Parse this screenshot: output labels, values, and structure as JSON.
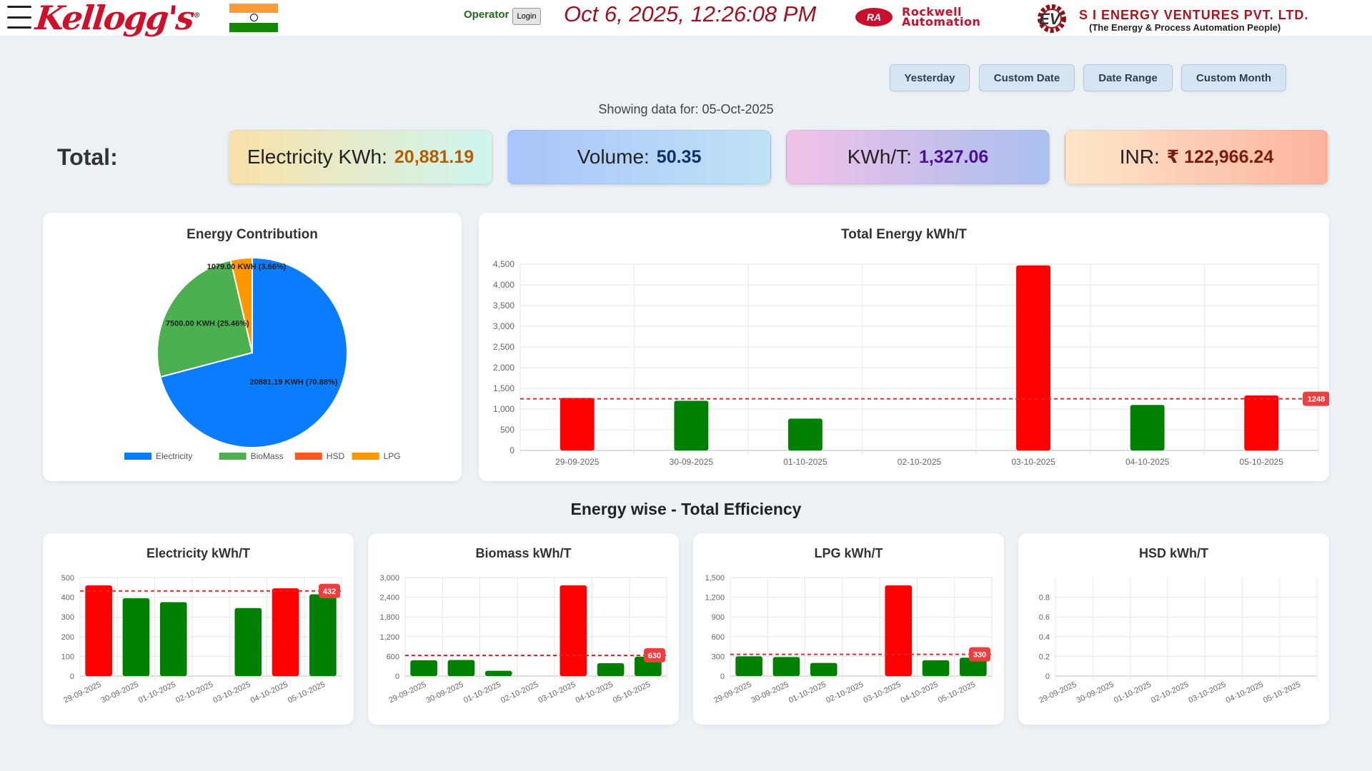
{
  "header": {
    "brand": "Kellogg's",
    "brand_mark": "®",
    "operator_label": "Operator",
    "login_label": "Login",
    "datetime": "Oct 6, 2025, 12:26:08 PM",
    "ra_badge": "RA",
    "ra_line1": "Rockwell",
    "ra_line2": "Automation",
    "ev_badge": "EV",
    "company": "S I ENERGY VENTURES PVT. LTD.",
    "company_tagline": "(The Energy & Process Automation People)"
  },
  "filters": [
    "Yesterday",
    "Custom Date",
    "Date Range",
    "Custom Month"
  ],
  "showing_text": "Showing data for: 05-Oct-2025",
  "totals": {
    "label": "Total:",
    "items": [
      {
        "label": "Electricity KWh:",
        "value": "20,881.19"
      },
      {
        "label": "Volume:",
        "value": "50.35"
      },
      {
        "label": "KWh/T:",
        "value": "1,327.06"
      },
      {
        "label": "INR:",
        "value": "₹ 122,966.24"
      }
    ]
  },
  "colors": {
    "over_target": "#ff0000",
    "under_target": "#008000",
    "target_line": "#e0282e",
    "electricity": "#0a7cff",
    "biomass": "#4caf50",
    "hsd": "#ff5722",
    "lpg": "#ff9800"
  },
  "section_title": "Energy wise - Total Efficiency",
  "charts": {
    "pie": {
      "title": "Energy Contribution",
      "chart_data": {
        "type": "pie",
        "slices": [
          {
            "name": "Electricity",
            "value": 20881.19,
            "label": "20881.19 KWH (70.88%)",
            "color": "#0a7cff"
          },
          {
            "name": "BioMass",
            "value": 7500.0,
            "label": "7500.00 KWH (25.46%)",
            "color": "#4caf50"
          },
          {
            "name": "HSD",
            "value": 0,
            "label": "",
            "color": "#ff5722"
          },
          {
            "name": "LPG",
            "value": 1079.0,
            "label": "1079.00 KWH (3.66%)",
            "color": "#ff9800"
          }
        ],
        "legend_position": "bottom"
      }
    },
    "total": {
      "title": "Total Energy kWh/T",
      "chart_data": {
        "type": "bar",
        "categories": [
          "29-09-2025",
          "30-09-2025",
          "01-10-2025",
          "02-10-2025",
          "03-10-2025",
          "04-10-2025",
          "05-10-2025"
        ],
        "values": [
          1270,
          1200,
          770,
          0,
          4470,
          1100,
          1327
        ],
        "target": 1248,
        "target_label": "1248",
        "ylim": [
          0,
          4500
        ],
        "yticks": [
          0,
          500,
          1000,
          1500,
          2000,
          2500,
          3000,
          3500,
          4000,
          4500
        ],
        "ytick_labels": [
          "0",
          "500",
          "1,000",
          "1,500",
          "2,000",
          "2,500",
          "3,000",
          "3,500",
          "4,000",
          "4,500"
        ],
        "grid": true
      }
    },
    "small": [
      {
        "title": "Electricity kWh/T",
        "chart_data": {
          "type": "bar",
          "categories": [
            "29-09-2025",
            "30-09-2025",
            "01-10-2025",
            "02-10-2025",
            "03-10-2025",
            "04-10-2025",
            "05-10-2025"
          ],
          "values": [
            460,
            395,
            375,
            0,
            345,
            445,
            415
          ],
          "target": 432,
          "target_label": "432",
          "ylim": [
            0,
            500
          ],
          "yticks": [
            0,
            100,
            200,
            300,
            400,
            500
          ],
          "ytick_labels": [
            "0",
            "100",
            "200",
            "300",
            "400",
            "500"
          ],
          "grid": true
        }
      },
      {
        "title": "Biomass kWh/T",
        "chart_data": {
          "type": "bar",
          "categories": [
            "29-09-2025",
            "30-09-2025",
            "01-10-2025",
            "02-10-2025",
            "03-10-2025",
            "04-10-2025",
            "05-10-2025"
          ],
          "values": [
            480,
            490,
            160,
            0,
            2760,
            390,
            590
          ],
          "target": 630,
          "target_label": "630",
          "ylim": [
            0,
            3000
          ],
          "yticks": [
            0,
            600,
            1200,
            1800,
            2400,
            3000
          ],
          "ytick_labels": [
            "0",
            "600",
            "1,200",
            "1,800",
            "2,400",
            "3,000"
          ],
          "grid": true
        }
      },
      {
        "title": "LPG kWh/T",
        "chart_data": {
          "type": "bar",
          "categories": [
            "29-09-2025",
            "30-09-2025",
            "01-10-2025",
            "02-10-2025",
            "03-10-2025",
            "04-10-2025",
            "05-10-2025"
          ],
          "values": [
            300,
            290,
            200,
            0,
            1380,
            240,
            280
          ],
          "target": 330,
          "target_label": "330",
          "ylim": [
            0,
            1500
          ],
          "yticks": [
            0,
            300,
            600,
            900,
            1200,
            1500
          ],
          "ytick_labels": [
            "0",
            "300",
            "600",
            "900",
            "1,200",
            "1,500"
          ],
          "grid": true
        }
      },
      {
        "title": "HSD kWh/T",
        "chart_data": {
          "type": "bar",
          "categories": [
            "29-09-2025",
            "30-09-2025",
            "01-10-2025",
            "02-10-2025",
            "03-10-2025",
            "04-10-2025",
            "05-10-2025"
          ],
          "values": [
            0,
            0,
            0,
            0,
            0,
            0,
            0
          ],
          "ylim": [
            0,
            1
          ],
          "yticks": [
            0,
            0.2,
            0.4,
            0.6,
            0.8
          ],
          "ytick_labels": [
            "0",
            "0.2",
            "0.4",
            "0.6",
            "0.8"
          ],
          "grid": true
        }
      }
    ]
  }
}
